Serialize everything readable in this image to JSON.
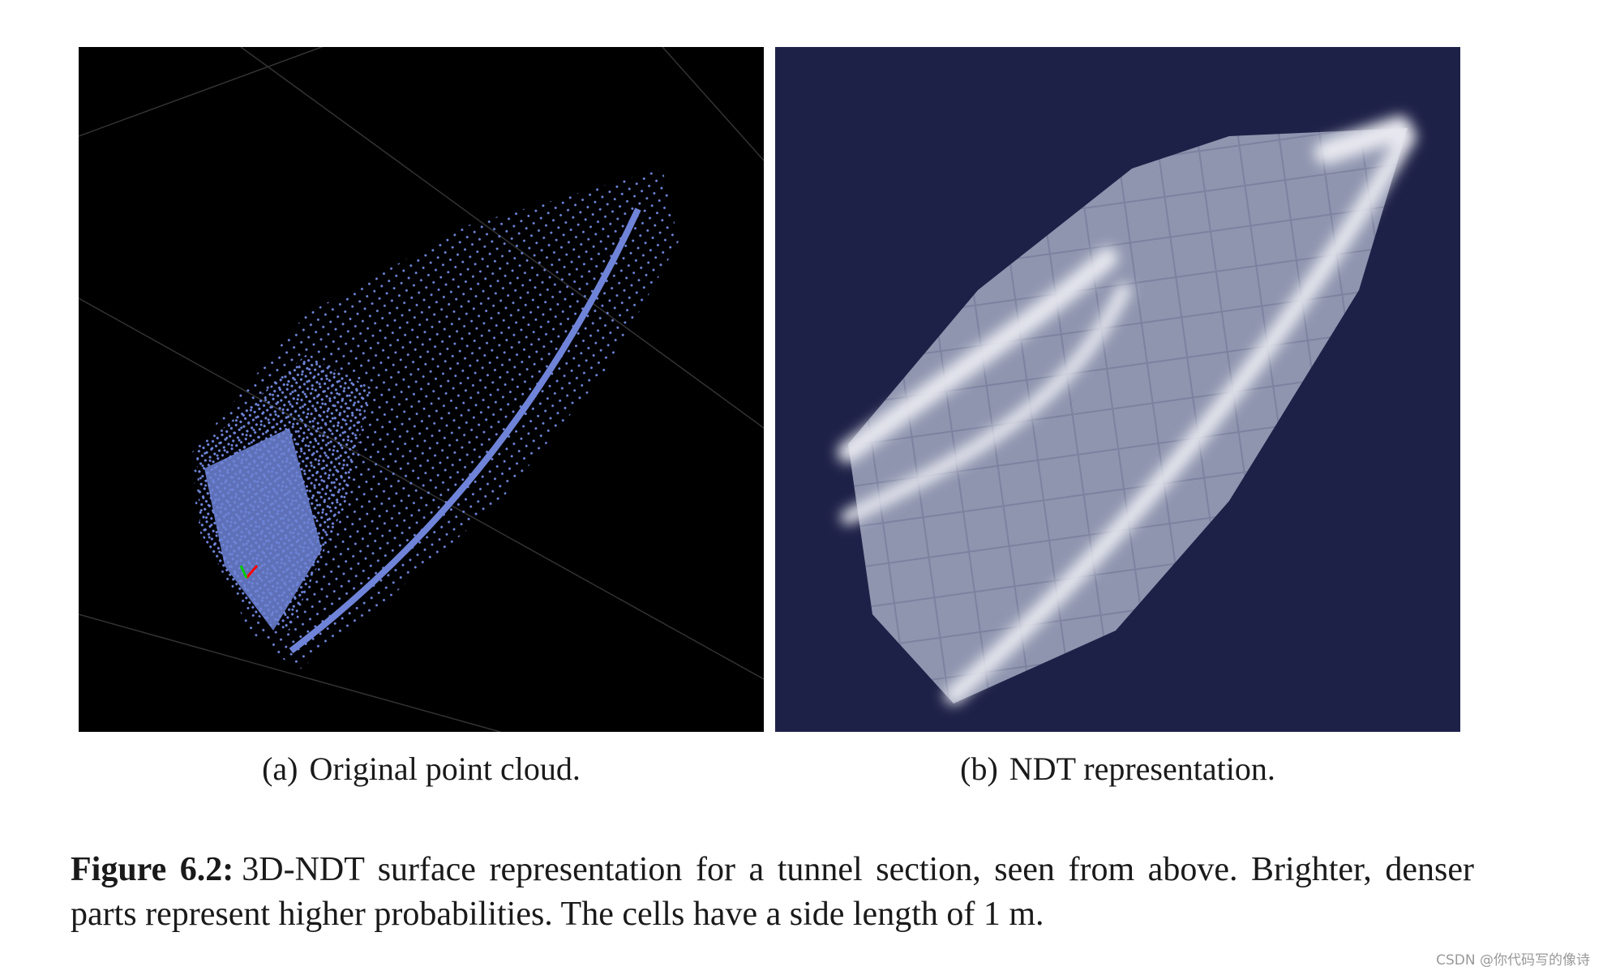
{
  "figure": {
    "subfigures": [
      {
        "label": "(a)",
        "caption": "Original point cloud."
      },
      {
        "label": "(b)",
        "caption": "NDT representation."
      }
    ],
    "label": "Figure 6.2:",
    "caption": "3D-NDT surface representation for a tunnel section, seen from above. Brighter, denser parts represent higher probabilities. The cells have a side length of 1 m."
  },
  "watermark": "CSDN @你代码写的像诗"
}
